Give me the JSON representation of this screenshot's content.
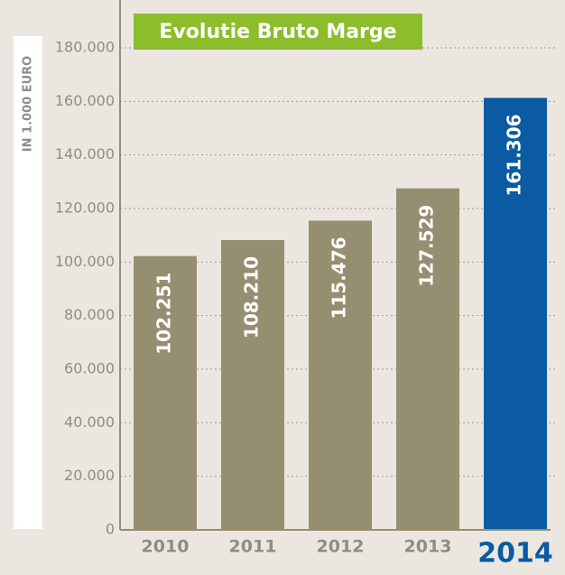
{
  "chart_data": {
    "type": "bar",
    "title": "Evolutie Bruto Marge",
    "y_label": "IN 1.000 EURO",
    "categories": [
      "2010",
      "2011",
      "2012",
      "2013",
      "2014"
    ],
    "values": [
      102251,
      108210,
      115476,
      127529,
      161306
    ],
    "value_labels": [
      "102.251",
      "108.210",
      "115.476",
      "127.529",
      "161.306"
    ],
    "color": "#968e70",
    "colors": [
      "#968e70",
      "#968e70",
      "#968e70",
      "#968e70",
      "#0a5ba1"
    ],
    "ylim": [
      0,
      180000
    ],
    "yticks": [
      0,
      {
        "value": 20000,
        "label": "20.000"
      },
      {
        "value": 40000,
        "label": "40.000"
      },
      {
        "value": 60000,
        "label": "60.000"
      },
      {
        "value": 80000,
        "label": "80.000"
      },
      {
        "value": 100000,
        "label": "100.000"
      },
      {
        "value": 120000,
        "label": "120.000"
      },
      {
        "value": 140000,
        "label": "140.000"
      },
      {
        "value": 160000,
        "label": "160.000"
      },
      {
        "value": 180000,
        "label": "180.000"
      }
    ],
    "grid": true
  }
}
